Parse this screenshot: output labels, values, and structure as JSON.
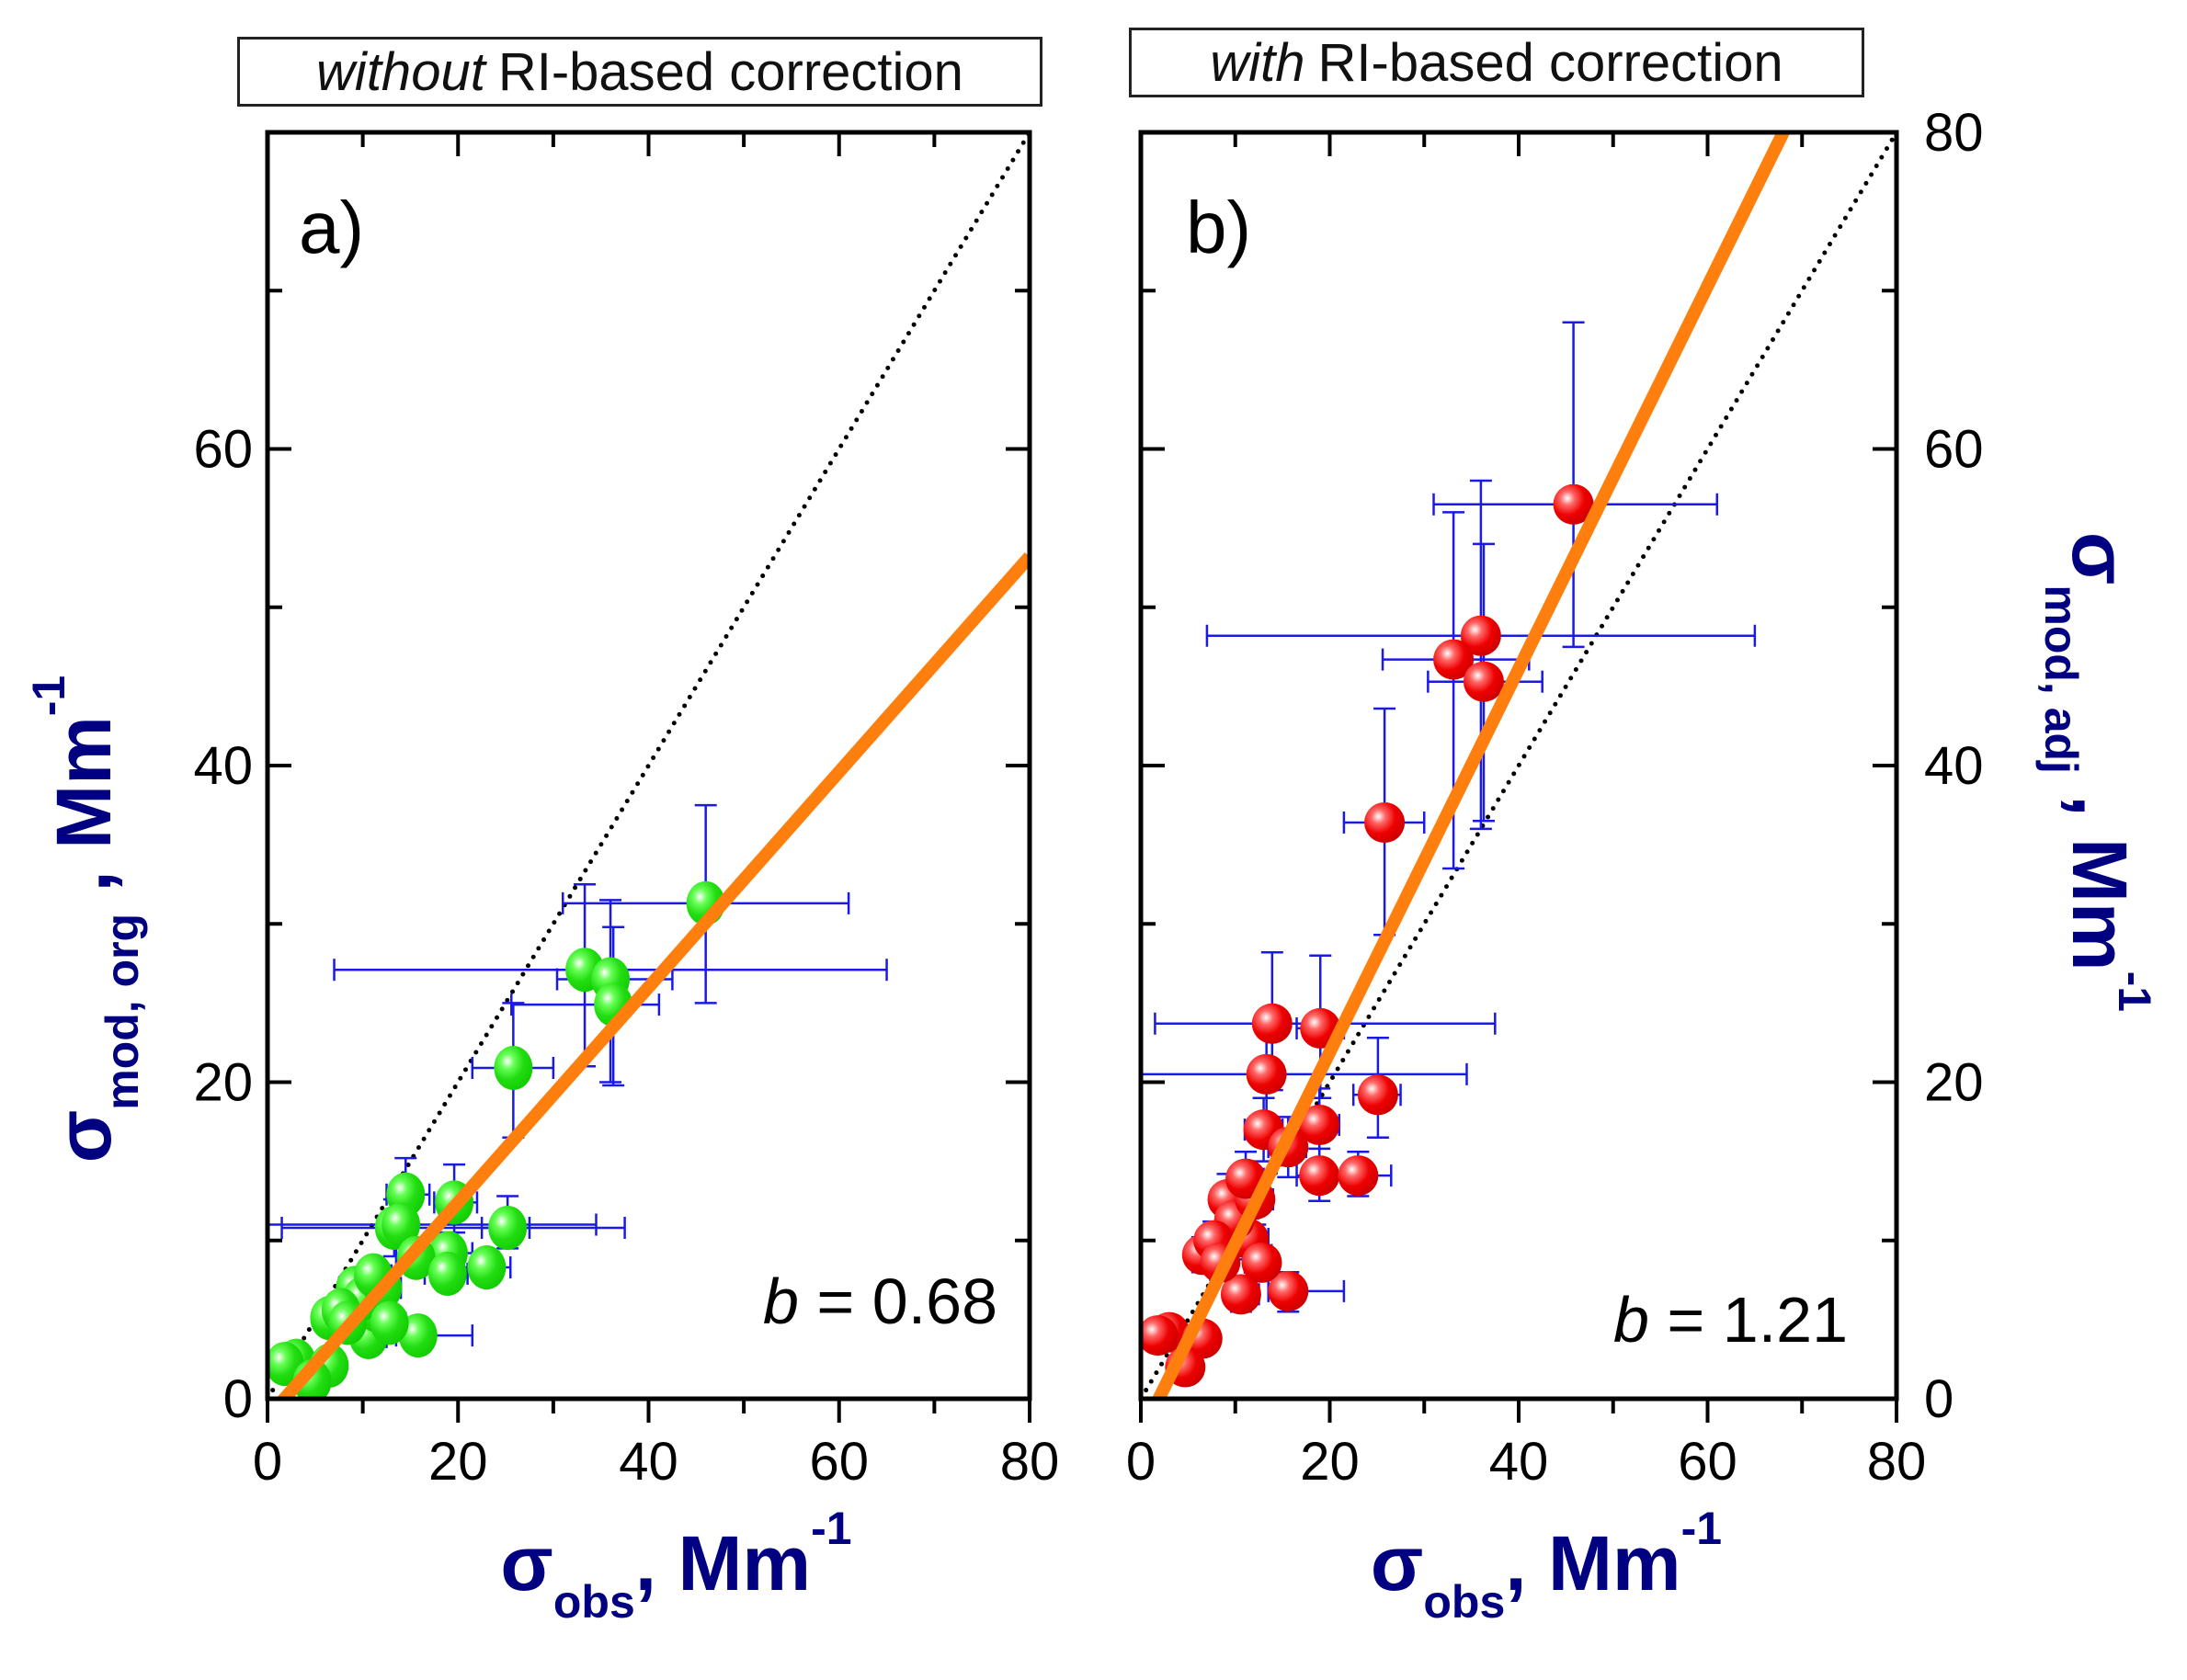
{
  "chart_data": [
    {
      "type": "scatter",
      "panel_label": "a)",
      "title_italic": "without",
      "title_rest": "RI-based correction",
      "xlabel": "σobs, Mm-1",
      "xlabel_parts": {
        "sym": "σ",
        "sub": "obs",
        "sep": ",",
        "unit": "Mm",
        "sup": "-1"
      },
      "ylabel": "σmod, org , Mm-1",
      "ylabel_parts": {
        "sym": "σ",
        "sub": "mod, org",
        "sep": " ,",
        "unit": "Mm",
        "sup": "-1"
      },
      "xlim": [
        0,
        80
      ],
      "ylim": [
        0,
        80
      ],
      "xticks": [
        0,
        20,
        40,
        60,
        80
      ],
      "yticks": [
        0,
        20,
        40,
        60
      ],
      "minor_ticks": [
        10,
        30,
        50,
        70
      ],
      "y_axis_side": "left",
      "annotation": {
        "italic": "b",
        "text": " = 0.68"
      },
      "fit_slope": 0.68,
      "fit_intercept": -1.2,
      "one_to_one_line": true,
      "marker_color": "#22dd11",
      "errorbar_color": "#1a1ae6",
      "fit_color": "#ff7f0e",
      "points": [
        {
          "x": 46.0,
          "y": 31.3,
          "xerr": [
            31.0,
            61.0
          ],
          "yerr": [
            25.0,
            37.5
          ]
        },
        {
          "x": 33.3,
          "y": 27.1,
          "xerr": [
            7.0,
            65.0
          ],
          "yerr": [
            21.0,
            32.5
          ]
        },
        {
          "x": 36.0,
          "y": 26.5,
          "xerr": [
            30.4,
            42.5
          ],
          "yerr": [
            20.0,
            31.5
          ]
        },
        {
          "x": 36.3,
          "y": 24.9,
          "xerr": [
            25.6,
            41.1
          ],
          "yerr": [
            19.8,
            29.8
          ]
        },
        {
          "x": 25.8,
          "y": 20.9,
          "xerr": [
            21.5,
            30.0
          ],
          "yerr": [
            16.5,
            25.0
          ]
        },
        {
          "x": 14.5,
          "y": 12.9,
          "xerr": [
            12.5,
            17.0
          ],
          "yerr": [
            11.0,
            15.2
          ]
        },
        {
          "x": 19.6,
          "y": 12.4,
          "xerr": [
            17.5,
            22.0
          ],
          "yerr": [
            10.5,
            14.8
          ]
        },
        {
          "x": 13.3,
          "y": 10.8,
          "xerr": [
            1.5,
            37.5
          ],
          "yerr": [
            9.0,
            12.6
          ]
        },
        {
          "x": 25.2,
          "y": 10.8,
          "xerr": [
            22.5,
            27.5
          ],
          "yerr": [
            9.5,
            12.8
          ]
        },
        {
          "x": 14.0,
          "y": 11.0,
          "xerr": [
            0.0,
            34.5
          ],
          "yerr": [
            9.6,
            12.4
          ]
        },
        {
          "x": 19.0,
          "y": 9.2,
          "xerr": [
            16.5,
            21.5
          ],
          "yerr": [
            8.0,
            10.5
          ]
        },
        {
          "x": 23.0,
          "y": 8.3,
          "xerr": [
            20.5,
            25.5
          ],
          "yerr": [
            7.2,
            9.3
          ]
        },
        {
          "x": 15.8,
          "y": 4.0,
          "xerr": [
            13.5,
            21.5
          ],
          "yerr": [
            3.2,
            4.8
          ]
        },
        {
          "x": 10.6,
          "y": 3.9,
          "xerr": [
            9.0,
            12.5
          ],
          "yerr": [
            3.2,
            4.6
          ]
        },
        {
          "x": 11.4,
          "y": 5.6,
          "xerr": [
            9.5,
            13.5
          ],
          "yerr": [
            4.8,
            6.4
          ]
        },
        {
          "x": 6.5,
          "y": 5.1,
          "xerr": [
            5.0,
            8.0
          ],
          "yerr": [
            4.3,
            5.9
          ]
        },
        {
          "x": 9.2,
          "y": 7.0,
          "xerr": [
            7.5,
            11.0
          ],
          "yerr": [
            6.0,
            8.0
          ]
        },
        {
          "x": 9.9,
          "y": 6.3,
          "xerr": [
            8.0,
            12.0
          ],
          "yerr": [
            5.4,
            7.2
          ]
        },
        {
          "x": 7.7,
          "y": 5.6,
          "xerr": [
            6.0,
            9.5
          ],
          "yerr": [
            4.8,
            6.4
          ]
        },
        {
          "x": 12.1,
          "y": 7.0,
          "xerr": [
            10.0,
            14.0
          ],
          "yerr": [
            6.0,
            8.0
          ]
        },
        {
          "x": 8.4,
          "y": 4.8,
          "xerr": [
            6.5,
            10.0
          ],
          "yerr": [
            4.0,
            5.6
          ]
        },
        {
          "x": 11.1,
          "y": 7.8,
          "xerr": [
            9.5,
            13.0
          ],
          "yerr": [
            6.8,
            8.8
          ]
        },
        {
          "x": 12.8,
          "y": 4.8,
          "xerr": [
            11.0,
            14.5
          ],
          "yerr": [
            4.0,
            5.6
          ]
        },
        {
          "x": 15.6,
          "y": 8.9,
          "xerr": [
            13.5,
            17.5
          ],
          "yerr": [
            7.8,
            10.0
          ]
        },
        {
          "x": 18.9,
          "y": 7.9,
          "xerr": [
            16.5,
            21.0
          ],
          "yerr": [
            6.8,
            9.0
          ]
        },
        {
          "x": 3.0,
          "y": 2.4,
          "xerr": [
            2.0,
            4.5
          ],
          "yerr": [
            1.8,
            3.0
          ]
        },
        {
          "x": 1.8,
          "y": 2.2,
          "xerr": [
            1.0,
            3.0
          ],
          "yerr": [
            1.6,
            2.8
          ]
        },
        {
          "x": 6.5,
          "y": 2.1,
          "xerr": [
            5.0,
            8.0
          ],
          "yerr": [
            1.5,
            2.7
          ]
        },
        {
          "x": 4.7,
          "y": 1.1,
          "xerr": [
            3.5,
            6.0
          ],
          "yerr": [
            0.6,
            1.6
          ]
        }
      ]
    },
    {
      "type": "scatter",
      "panel_label": "b)",
      "title_italic": "with",
      "title_rest": "RI-based correction",
      "xlabel": "σobs, Mm-1",
      "xlabel_parts": {
        "sym": "σ",
        "sub": "obs",
        "sep": ",",
        "unit": "Mm",
        "sup": "-1"
      },
      "ylabel": "σmod, adj , Mm-1",
      "ylabel_parts": {
        "sym": "σ",
        "sub": "mod, adj",
        "sep": " ,",
        "unit": "Mm",
        "sup": "-1"
      },
      "xlim": [
        0,
        80
      ],
      "ylim": [
        0,
        80
      ],
      "xticks": [
        0,
        20,
        40,
        60,
        80
      ],
      "yticks": [
        0,
        20,
        40,
        60,
        80
      ],
      "minor_ticks": [
        10,
        30,
        50,
        70
      ],
      "y_axis_side": "right",
      "annotation": {
        "italic": "b",
        "text": " = 1.21"
      },
      "fit_slope": 1.21,
      "fit_intercept": -2.3,
      "one_to_one_line": true,
      "marker_color": "#ee0000",
      "errorbar_color": "#1a1ae6",
      "fit_color": "#ff7f0e",
      "points": [
        {
          "x": 45.8,
          "y": 56.5,
          "xerr": [
            31.0,
            61.0
          ],
          "yerr": [
            47.5,
            68.0
          ]
        },
        {
          "x": 36.0,
          "y": 48.2,
          "xerr": [
            7.0,
            65.0
          ],
          "yerr": [
            36.0,
            58.0
          ]
        },
        {
          "x": 33.1,
          "y": 46.7,
          "xerr": [
            25.6,
            41.1
          ],
          "yerr": [
            33.5,
            56.0
          ]
        },
        {
          "x": 36.3,
          "y": 45.3,
          "xerr": [
            30.4,
            42.5
          ],
          "yerr": [
            36.5,
            54.0
          ]
        },
        {
          "x": 25.8,
          "y": 36.4,
          "xerr": [
            21.5,
            30.0
          ],
          "yerr": [
            29.3,
            43.6
          ]
        },
        {
          "x": 13.9,
          "y": 23.7,
          "xerr": [
            1.5,
            37.5
          ],
          "yerr": [
            19.5,
            28.2
          ]
        },
        {
          "x": 19.0,
          "y": 23.4,
          "xerr": [
            16.5,
            21.5
          ],
          "yerr": [
            19.0,
            28.0
          ]
        },
        {
          "x": 13.3,
          "y": 20.5,
          "xerr": [
            0.0,
            34.5
          ],
          "yerr": [
            17.5,
            23.5
          ]
        },
        {
          "x": 25.1,
          "y": 19.2,
          "xerr": [
            22.5,
            27.5
          ],
          "yerr": [
            16.5,
            22.8
          ]
        },
        {
          "x": 18.9,
          "y": 17.3,
          "xerr": [
            16.5,
            21.0
          ],
          "yerr": [
            15.0,
            19.6
          ]
        },
        {
          "x": 13.0,
          "y": 17.0,
          "xerr": [
            11.0,
            15.0
          ],
          "yerr": [
            15.0,
            19.0
          ]
        },
        {
          "x": 18.9,
          "y": 14.1,
          "xerr": [
            16.5,
            21.5
          ],
          "yerr": [
            12.5,
            15.8
          ]
        },
        {
          "x": 23.0,
          "y": 14.1,
          "xerr": [
            20.5,
            26.5
          ],
          "yerr": [
            12.8,
            15.6
          ]
        },
        {
          "x": 15.6,
          "y": 15.9,
          "xerr": [
            13.5,
            17.5
          ],
          "yerr": [
            14.0,
            17.8
          ]
        },
        {
          "x": 11.4,
          "y": 10.1,
          "xerr": [
            9.5,
            13.5
          ],
          "yerr": [
            8.8,
            11.4
          ]
        },
        {
          "x": 6.5,
          "y": 9.1,
          "xerr": [
            5.0,
            8.0
          ],
          "yerr": [
            8.0,
            10.2
          ]
        },
        {
          "x": 15.6,
          "y": 6.8,
          "xerr": [
            13.5,
            21.5
          ],
          "yerr": [
            5.5,
            8.0
          ]
        },
        {
          "x": 10.6,
          "y": 6.6,
          "xerr": [
            9.0,
            12.5
          ],
          "yerr": [
            5.5,
            7.7
          ]
        },
        {
          "x": 9.2,
          "y": 12.6,
          "xerr": [
            7.5,
            11.0
          ],
          "yerr": [
            11.0,
            14.2
          ]
        },
        {
          "x": 9.9,
          "y": 11.3,
          "xerr": [
            8.0,
            12.0
          ],
          "yerr": [
            9.8,
            12.8
          ]
        },
        {
          "x": 7.7,
          "y": 10.0,
          "xerr": [
            6.0,
            9.5
          ],
          "yerr": [
            8.8,
            11.2
          ]
        },
        {
          "x": 12.1,
          "y": 12.6,
          "xerr": [
            10.0,
            14.0
          ],
          "yerr": [
            11.0,
            14.2
          ]
        },
        {
          "x": 8.4,
          "y": 8.6,
          "xerr": [
            6.5,
            10.0
          ],
          "yerr": [
            7.5,
            9.7
          ]
        },
        {
          "x": 11.1,
          "y": 13.9,
          "xerr": [
            9.5,
            13.0
          ],
          "yerr": [
            12.2,
            15.6
          ]
        },
        {
          "x": 12.8,
          "y": 8.6,
          "xerr": [
            11.0,
            14.5
          ],
          "yerr": [
            7.5,
            9.7
          ]
        },
        {
          "x": 3.0,
          "y": 4.2,
          "xerr": [
            2.0,
            4.5
          ],
          "yerr": [
            3.4,
            5.0
          ]
        },
        {
          "x": 1.8,
          "y": 4.0,
          "xerr": [
            1.0,
            3.0
          ],
          "yerr": [
            3.2,
            4.8
          ]
        },
        {
          "x": 6.5,
          "y": 3.8,
          "xerr": [
            5.0,
            8.0
          ],
          "yerr": [
            3.0,
            4.6
          ]
        },
        {
          "x": 4.7,
          "y": 2.0,
          "xerr": [
            3.5,
            6.0
          ],
          "yerr": [
            1.2,
            2.8
          ]
        }
      ]
    }
  ]
}
